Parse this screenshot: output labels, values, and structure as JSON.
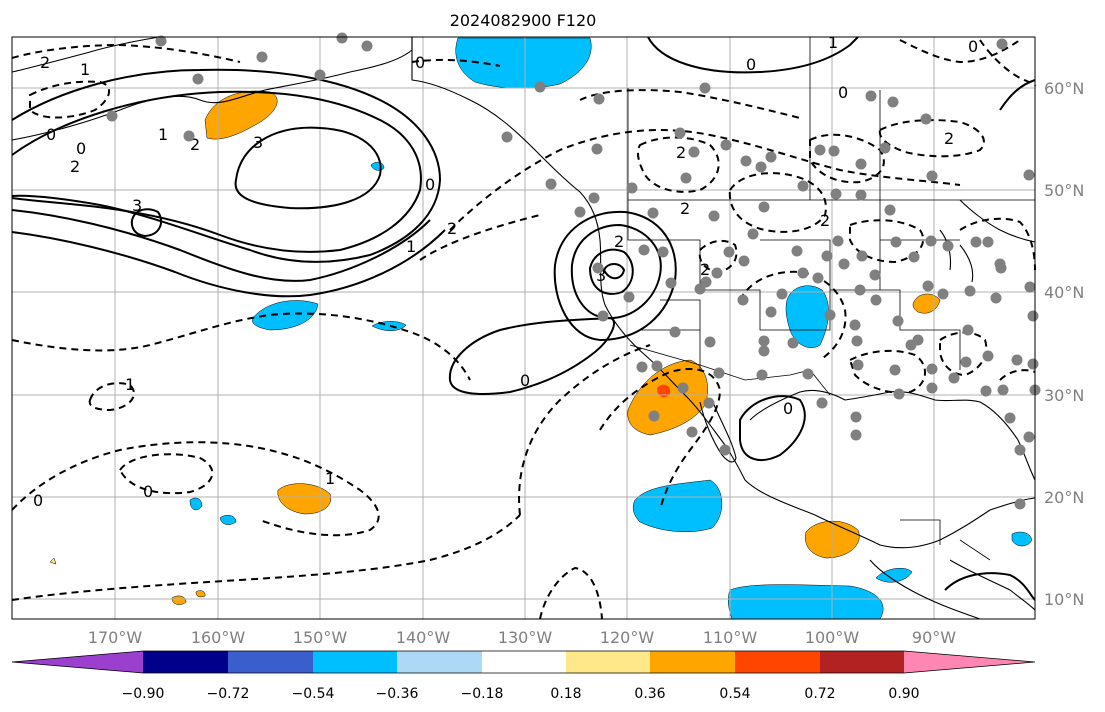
{
  "title": "2024082900 F120",
  "lon_ticks": [
    "170°W",
    "160°W",
    "150°W",
    "140°W",
    "130°W",
    "120°W",
    "110°W",
    "100°W",
    "90°W"
  ],
  "lat_ticks": [
    "60°N",
    "50°N",
    "40°N",
    "30°N",
    "20°N",
    "10°N"
  ],
  "colorbar": {
    "labels": [
      "−0.90",
      "−0.72",
      "−0.54",
      "−0.36",
      "−0.18",
      "0.18",
      "0.36",
      "0.54",
      "0.72",
      "0.90"
    ],
    "colors": [
      "#9b3fcf",
      "#00008b",
      "#3a5fcd",
      "#00bfff",
      "#add8f6",
      "#ffffff",
      "#ffe88a",
      "#ffa500",
      "#ff4500",
      "#b22222",
      "#ff85b3"
    ]
  },
  "contour_labels": [
    "0",
    "1",
    "2",
    "3",
    "0",
    "1",
    "2",
    "2",
    "3",
    "0",
    "2",
    "1",
    "0",
    "2",
    "3",
    "0",
    "2",
    "1",
    "0",
    "1",
    "2",
    "0",
    "0",
    "2",
    "2",
    "0",
    "0",
    "1",
    "2",
    "0"
  ],
  "fill_colors": {
    "positive": "#ffa500",
    "negative": "#00bfff",
    "strong_positive": "#ff4500",
    "station": "#808080"
  }
}
